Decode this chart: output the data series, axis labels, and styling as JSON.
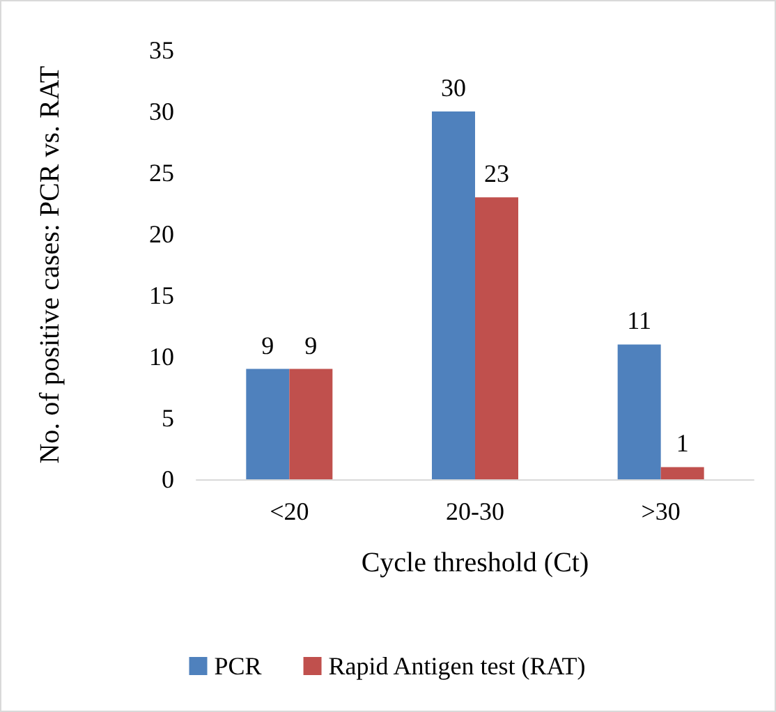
{
  "chart_data": {
    "type": "bar",
    "xlabel": "Cycle threshold (Ct)",
    "ylabel": "No. of positive cases: PCR vs. RAT",
    "categories": [
      "<20",
      "20-30",
      ">30"
    ],
    "series": [
      {
        "name": "PCR",
        "color": "#4f81bd",
        "values": [
          9,
          30,
          11
        ]
      },
      {
        "name": "Rapid Antigen test (RAT)",
        "color": "#c0504d",
        "values": [
          9,
          23,
          1
        ]
      }
    ],
    "ylim": [
      0,
      35
    ],
    "yticks": [
      0,
      5,
      10,
      15,
      20,
      25,
      30,
      35
    ],
    "grid": false,
    "legend": "bottom",
    "data_labels": true
  }
}
